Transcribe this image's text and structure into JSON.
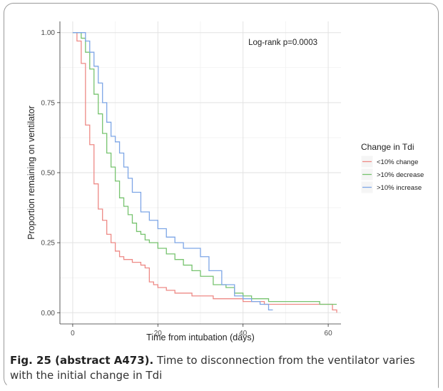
{
  "chart_data": {
    "type": "line",
    "step": true,
    "xlabel": "Time from intubation (days)",
    "ylabel": "Proportion remaining on ventilator",
    "xlim": [
      -3,
      63
    ],
    "ylim": [
      -0.04,
      1.04
    ],
    "xticks": [
      0,
      20,
      40,
      60
    ],
    "yticks": [
      0.0,
      0.25,
      0.5,
      0.75,
      1.0
    ],
    "xtick_labels": [
      "0",
      "20",
      "40",
      "60"
    ],
    "ytick_labels": [
      "0.00",
      "0.25",
      "0.50",
      "0.75",
      "1.00"
    ],
    "grid": true,
    "annotation": "Log-rank p=0.0003",
    "legend": {
      "title": "Change in Tdi",
      "position": "right"
    },
    "series": [
      {
        "name": "<10% change",
        "color": "#ee8a86",
        "x": [
          0,
          1,
          2,
          3,
          4,
          5,
          6,
          7,
          8,
          9,
          10,
          11,
          12,
          14,
          16,
          17,
          18,
          19,
          20,
          22,
          24,
          26,
          28,
          30,
          33,
          36,
          40,
          45,
          52,
          56,
          60,
          61,
          62
        ],
        "y": [
          1.0,
          0.97,
          0.89,
          0.67,
          0.6,
          0.46,
          0.37,
          0.33,
          0.28,
          0.25,
          0.22,
          0.2,
          0.19,
          0.18,
          0.17,
          0.16,
          0.11,
          0.1,
          0.09,
          0.08,
          0.07,
          0.07,
          0.06,
          0.06,
          0.05,
          0.05,
          0.04,
          0.03,
          0.03,
          0.03,
          0.03,
          0.01,
          0.0
        ]
      },
      {
        "name": ">10% decrease",
        "color": "#77c36f",
        "x": [
          0,
          2,
          3,
          4,
          5,
          6,
          7,
          8,
          9,
          10,
          11,
          12,
          13,
          14,
          15,
          16,
          17,
          18,
          20,
          22,
          24,
          26,
          28,
          30,
          33,
          36,
          38,
          40,
          42,
          44,
          46,
          52,
          58,
          62
        ],
        "y": [
          1.0,
          0.98,
          0.93,
          0.87,
          0.78,
          0.71,
          0.64,
          0.57,
          0.52,
          0.47,
          0.41,
          0.38,
          0.35,
          0.32,
          0.29,
          0.28,
          0.26,
          0.25,
          0.23,
          0.21,
          0.19,
          0.17,
          0.15,
          0.13,
          0.1,
          0.09,
          0.07,
          0.06,
          0.05,
          0.05,
          0.04,
          0.04,
          0.03,
          0.03
        ]
      },
      {
        "name": ">10% increase",
        "color": "#7ea6e6",
        "x": [
          0,
          3,
          4,
          5,
          6,
          7,
          8,
          9,
          10,
          11,
          12,
          13,
          14,
          16,
          18,
          20,
          22,
          24,
          26,
          30,
          32,
          35,
          38,
          40,
          42,
          44,
          46,
          47
        ],
        "y": [
          1.0,
          0.97,
          0.93,
          0.88,
          0.82,
          0.75,
          0.68,
          0.63,
          0.61,
          0.57,
          0.52,
          0.48,
          0.43,
          0.36,
          0.33,
          0.3,
          0.27,
          0.25,
          0.23,
          0.2,
          0.15,
          0.1,
          0.06,
          0.05,
          0.04,
          0.03,
          0.01,
          0.01
        ]
      }
    ]
  },
  "caption": {
    "label": "Fig. 25 (abstract A473).",
    "text": " Time to disconnection from the ventilator varies with the initial change in Tdi"
  }
}
